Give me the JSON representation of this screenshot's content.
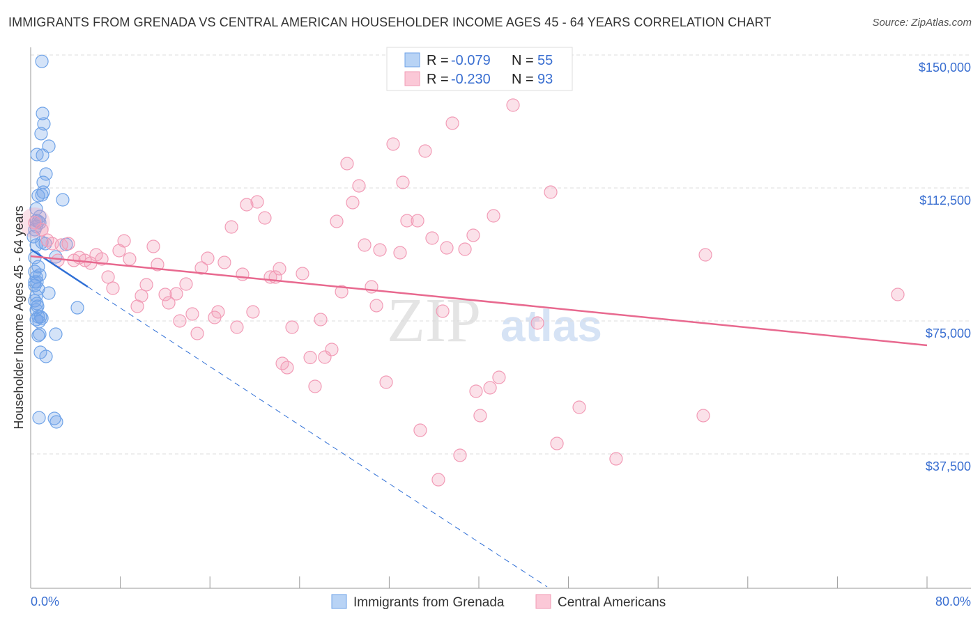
{
  "title": "IMMIGRANTS FROM GRENADA VS CENTRAL AMERICAN HOUSEHOLDER INCOME AGES 45 - 64 YEARS CORRELATION CHART",
  "source": "Source: ZipAtlas.com",
  "watermark": "ZIPatlas",
  "chart_data": {
    "type": "scatter",
    "title": "IMMIGRANTS FROM GRENADA VS CENTRAL AMERICAN HOUSEHOLDER INCOME AGES 45 - 64 YEARS CORRELATION CHART",
    "xlabel": "",
    "ylabel": "Householder Income Ages 45 - 64 years",
    "xlim": [
      0,
      80
    ],
    "ylim": [
      0,
      152000
    ],
    "x_tick_labels": [
      "0.0%",
      "80.0%"
    ],
    "y_ticks": [
      37500,
      75000,
      112500,
      150000
    ],
    "y_tick_labels": [
      "$37,500",
      "$75,000",
      "$112,500",
      "$150,000"
    ],
    "grid": true,
    "legend_stats": [
      {
        "r_label": "R = ",
        "r": "-0.079",
        "n_label": "N = ",
        "n": "55"
      },
      {
        "r_label": "R = ",
        "r": "-0.230",
        "n_label": "N = ",
        "n": "93"
      }
    ],
    "series": [
      {
        "name": "Immigrants from Grenada",
        "color": "#6fa3e8",
        "line_color": "#2f6fd6",
        "trend": {
          "x0": 0,
          "y0": 95220,
          "x_solid_end": 5.1,
          "x_dash_end": 46.1,
          "slope": -2078
        },
        "points": [
          [
            1.0,
            148200
          ],
          [
            1.06,
            133510
          ],
          [
            1.18,
            130565
          ],
          [
            0.93,
            127816
          ],
          [
            1.62,
            124280
          ],
          [
            0.56,
            121924
          ],
          [
            1.06,
            121727
          ],
          [
            1.37,
            116426
          ],
          [
            1.12,
            114070
          ],
          [
            0.68,
            110340
          ],
          [
            1.0,
            110535
          ],
          [
            1.12,
            111320
          ],
          [
            2.86,
            109160
          ],
          [
            0.5,
            106610
          ],
          [
            0.81,
            104450
          ],
          [
            0.5,
            103270
          ],
          [
            0.68,
            103075
          ],
          [
            0.5,
            101700
          ],
          [
            1.0,
            97185
          ],
          [
            1.31,
            96790
          ],
          [
            3.17,
            96595
          ],
          [
            0.5,
            96400
          ],
          [
            2.24,
            93060
          ],
          [
            0.68,
            90310
          ],
          [
            0.5,
            87370
          ],
          [
            0.81,
            87955
          ],
          [
            0.37,
            85990
          ],
          [
            0.68,
            84030
          ],
          [
            0.5,
            82065
          ],
          [
            1.62,
            82850
          ],
          [
            0.37,
            80690
          ],
          [
            0.56,
            79905
          ],
          [
            4.17,
            78725
          ],
          [
            0.68,
            76175
          ],
          [
            1.0,
            75780
          ],
          [
            0.5,
            75390
          ],
          [
            0.87,
            76175
          ],
          [
            2.24,
            71265
          ],
          [
            0.68,
            70875
          ],
          [
            0.81,
            71265
          ],
          [
            0.87,
            66160
          ],
          [
            1.37,
            64985
          ],
          [
            0.75,
            47705
          ],
          [
            2.12,
            47510
          ],
          [
            2.3,
            46530
          ],
          [
            0.37,
            92865
          ],
          [
            0.25,
            98755
          ],
          [
            0.37,
            88940
          ],
          [
            0.37,
            85010
          ],
          [
            0.5,
            78140
          ],
          [
            0.75,
            74800
          ],
          [
            0.37,
            100720
          ],
          [
            0.56,
            85990
          ],
          [
            0.62,
            79120
          ],
          [
            0.81,
            102680
          ]
        ]
      },
      {
        "name": "Central Americans",
        "color": "#f29bb6",
        "line_color": "#e8698f",
        "trend": {
          "x0": 0,
          "y0": 93260,
          "x1": 80,
          "y1": 68130
        },
        "points": [
          [
            43.05,
            135864
          ],
          [
            37.64,
            130760
          ],
          [
            32.35,
            124870
          ],
          [
            35.21,
            122905
          ],
          [
            28.24,
            119370
          ],
          [
            29.3,
            113090
          ],
          [
            33.22,
            114070
          ],
          [
            46.41,
            111320
          ],
          [
            19.28,
            107786
          ],
          [
            20.22,
            108570
          ],
          [
            28.74,
            108375
          ],
          [
            20.9,
            104056
          ],
          [
            27.31,
            103075
          ],
          [
            17.92,
            101505
          ],
          [
            33.59,
            103270
          ],
          [
            34.53,
            103270
          ],
          [
            41.31,
            104645
          ],
          [
            39.5,
            99150
          ],
          [
            35.83,
            98360
          ],
          [
            29.8,
            96400
          ],
          [
            31.17,
            95025
          ],
          [
            32.97,
            94240
          ],
          [
            37.14,
            95615
          ],
          [
            38.76,
            95220
          ],
          [
            60.22,
            93650
          ],
          [
            8.34,
            97580
          ],
          [
            10.95,
            96005
          ],
          [
            7.9,
            94830
          ],
          [
            15.8,
            92670
          ],
          [
            17.29,
            91490
          ],
          [
            11.32,
            90900
          ],
          [
            15.24,
            89920
          ],
          [
            22.21,
            89725
          ],
          [
            18.91,
            88150
          ],
          [
            21.4,
            87370
          ],
          [
            21.84,
            87370
          ],
          [
            24.26,
            88350
          ],
          [
            6.91,
            87370
          ],
          [
            7.34,
            84225
          ],
          [
            10.33,
            85210
          ],
          [
            13.87,
            85405
          ],
          [
            30.42,
            84620
          ],
          [
            27.75,
            83245
          ],
          [
            12.01,
            82460
          ],
          [
            9.89,
            82065
          ],
          [
            13.0,
            82655
          ],
          [
            9.52,
            79120
          ],
          [
            12.32,
            80100
          ],
          [
            30.86,
            79320
          ],
          [
            36.77,
            77750
          ],
          [
            19.84,
            77550
          ],
          [
            16.73,
            77550
          ],
          [
            14.43,
            76960
          ],
          [
            16.42,
            75980
          ],
          [
            13.31,
            75000
          ],
          [
            25.88,
            75390
          ],
          [
            18.41,
            73230
          ],
          [
            23.33,
            73230
          ],
          [
            14.87,
            71465
          ],
          [
            45.23,
            74410
          ],
          [
            77.39,
            82460
          ],
          [
            24.95,
            64690
          ],
          [
            26.87,
            66950
          ],
          [
            26.25,
            64790
          ],
          [
            22.46,
            63020
          ],
          [
            22.89,
            61840
          ],
          [
            41.8,
            59090
          ],
          [
            31.73,
            57720
          ],
          [
            25.38,
            56540
          ],
          [
            41.0,
            56150
          ],
          [
            39.75,
            55170
          ],
          [
            48.96,
            50650
          ],
          [
            40.12,
            48300
          ],
          [
            60.03,
            48300
          ],
          [
            34.77,
            44170
          ],
          [
            46.97,
            40440
          ],
          [
            38.32,
            37110
          ],
          [
            52.25,
            36120
          ],
          [
            36.39,
            30230
          ],
          [
            0.37,
            102680
          ],
          [
            1.0,
            100720
          ],
          [
            1.93,
            96790
          ],
          [
            2.74,
            96400
          ],
          [
            3.36,
            96790
          ],
          [
            2.43,
            92080
          ],
          [
            3.86,
            92080
          ],
          [
            4.35,
            92865
          ],
          [
            4.85,
            92080
          ],
          [
            5.35,
            91295
          ],
          [
            5.85,
            93650
          ],
          [
            6.35,
            92470
          ],
          [
            8.83,
            92470
          ],
          [
            1.49,
            97770
          ]
        ]
      }
    ]
  }
}
